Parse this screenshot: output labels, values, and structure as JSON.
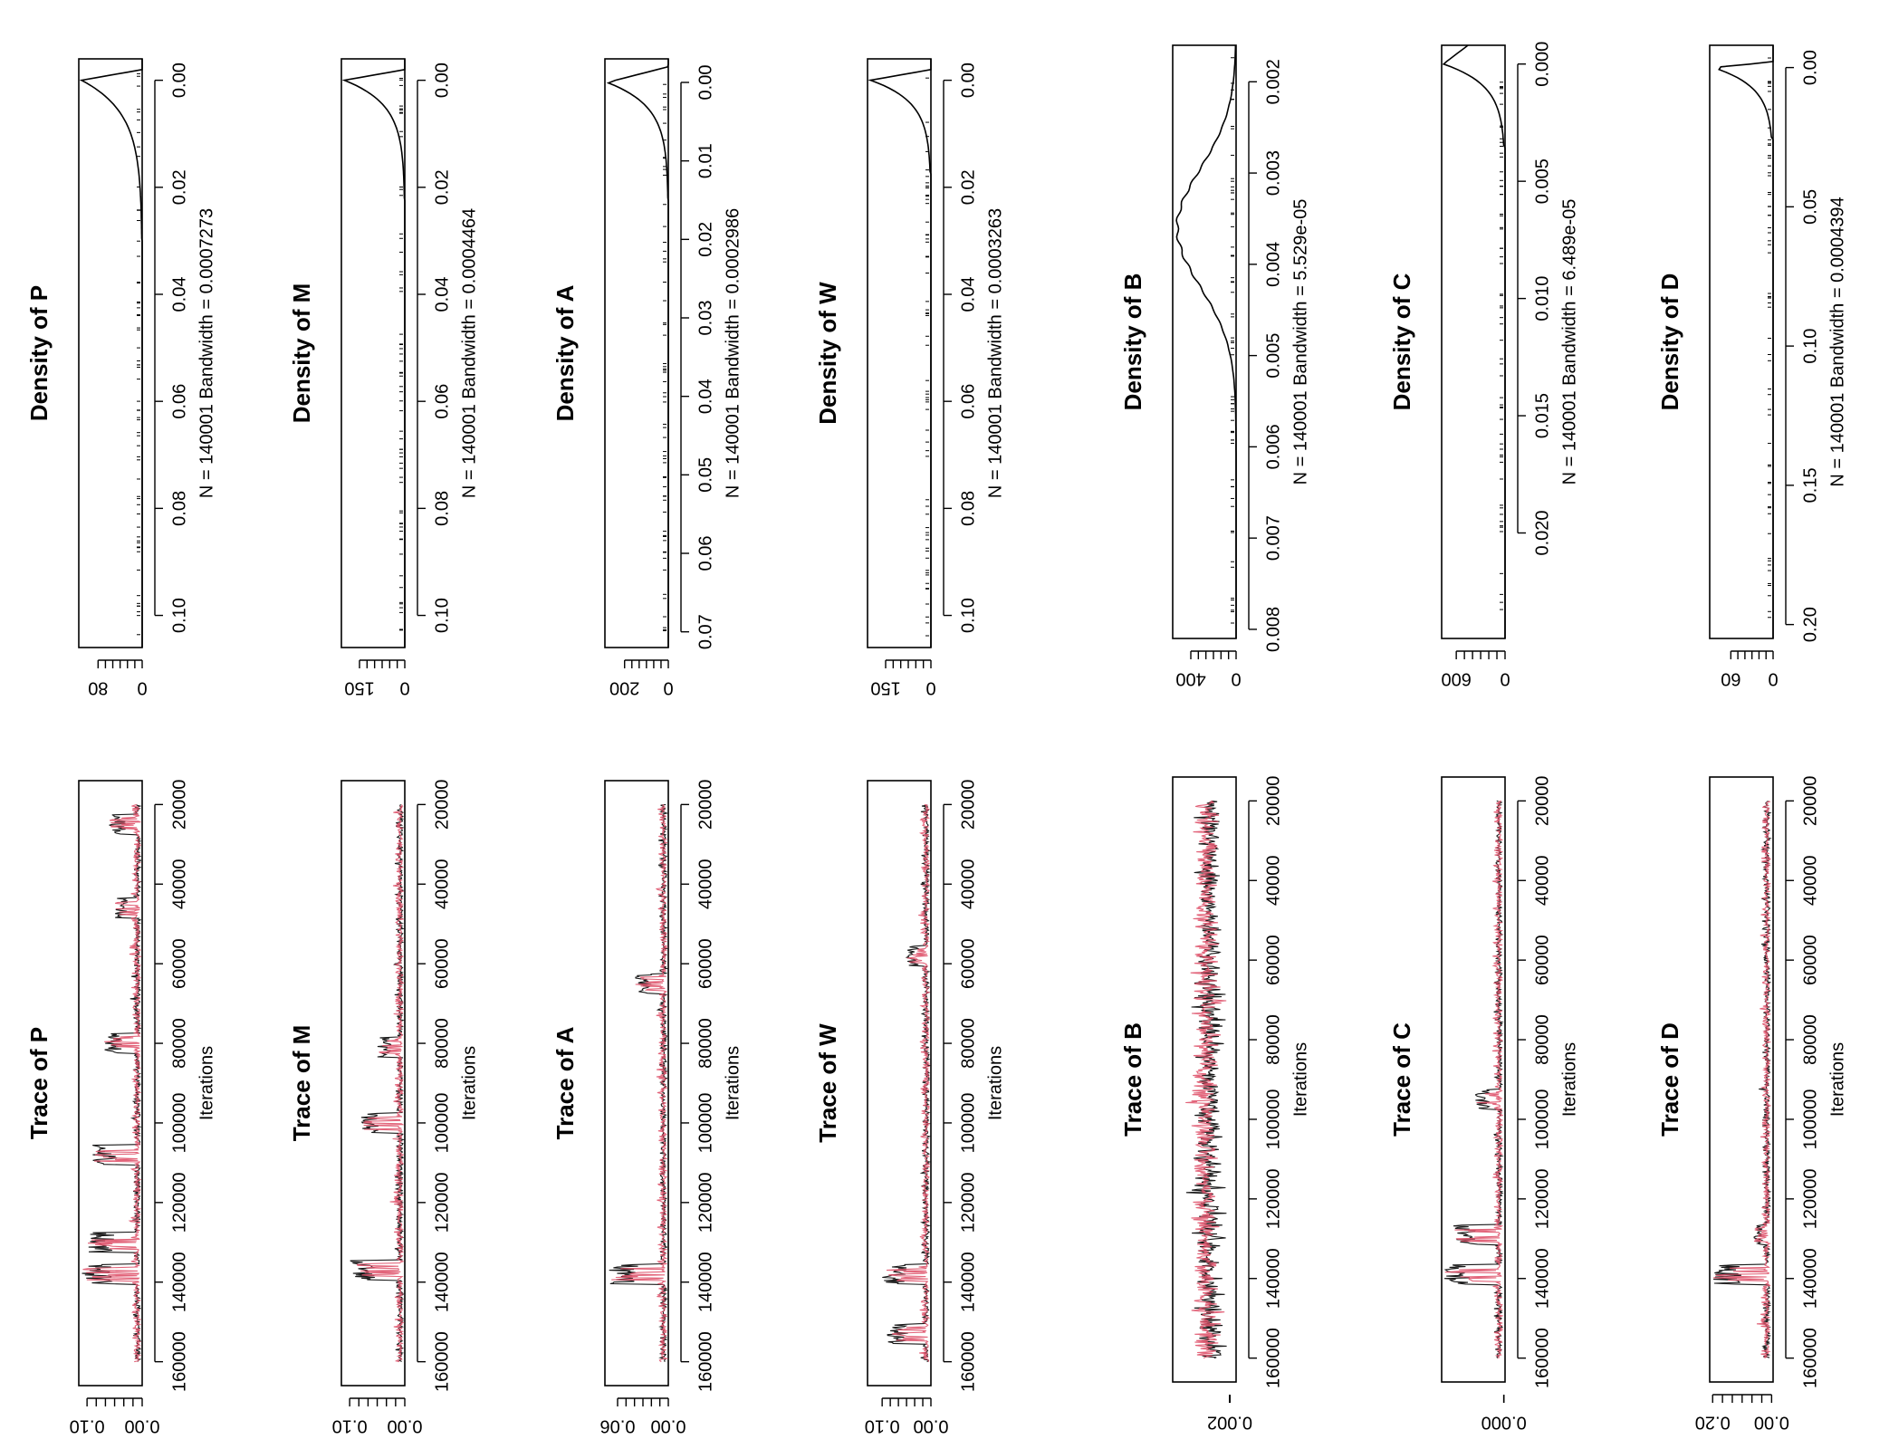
{
  "chart_data": [
    {
      "type": "line",
      "panel": "trace",
      "param": "P",
      "title": "Trace of P",
      "xlabel": "Iterations",
      "xticks": [
        20000,
        40000,
        60000,
        80000,
        100000,
        120000,
        140000,
        160000
      ],
      "xlim": [
        14000,
        166000
      ],
      "yticks": [
        "0.00",
        "0.10"
      ],
      "ytick_values": [
        0.0,
        0.1
      ],
      "ylim": [
        0,
        0.115
      ],
      "series": [],
      "colors": [
        "#000000",
        "#DF536B"
      ],
      "spikes": [
        [
          25000,
          0.06
        ],
        [
          46000,
          0.05
        ],
        [
          80000,
          0.07
        ],
        [
          108000,
          0.09
        ],
        [
          130000,
          0.1
        ],
        [
          138000,
          0.11
        ]
      ]
    },
    {
      "type": "line",
      "panel": "density",
      "param": "P",
      "title": "Density of P",
      "xlabel": "N = 140001   Bandwidth = 0.0007273",
      "xticks": [
        "0.00",
        "0.02",
        "0.04",
        "0.06",
        "0.08",
        "0.10"
      ],
      "xtick_values": [
        0,
        0.02,
        0.04,
        0.06,
        0.08,
        0.1
      ],
      "xlim": [
        -0.004,
        0.106
      ],
      "yticks": [
        "0",
        "80"
      ],
      "ytick_values": [
        0,
        80
      ],
      "ylim": [
        0,
        115
      ],
      "curve": {
        "peak": 110,
        "decay": 0.006,
        "tail": 0.03
      }
    },
    {
      "type": "line",
      "panel": "trace",
      "param": "M",
      "title": "Trace of M",
      "xlabel": "Iterations",
      "xticks": [
        20000,
        40000,
        60000,
        80000,
        100000,
        120000,
        140000,
        160000
      ],
      "xlim": [
        14000,
        166000
      ],
      "yticks": [
        "0.00",
        "0.10"
      ],
      "ytick_values": [
        0.0,
        0.1
      ],
      "ylim": [
        0,
        0.115
      ],
      "series": [],
      "colors": [
        "#000000",
        "#DF536B"
      ],
      "spikes": [
        [
          81000,
          0.05
        ],
        [
          100000,
          0.08
        ],
        [
          137000,
          0.1
        ]
      ]
    },
    {
      "type": "line",
      "panel": "density",
      "param": "M",
      "title": "Density of M",
      "xlabel": "N = 140001   Bandwidth = 0.0004464",
      "xticks": [
        "0.00",
        "0.02",
        "0.04",
        "0.06",
        "0.08",
        "0.10"
      ],
      "xtick_values": [
        0,
        0.02,
        0.04,
        0.06,
        0.08,
        0.1
      ],
      "xlim": [
        -0.004,
        0.106
      ],
      "yticks": [
        "0",
        "150"
      ],
      "ytick_values": [
        0,
        150
      ],
      "ylim": [
        0,
        210
      ],
      "curve": {
        "peak": 200,
        "decay": 0.0045,
        "tail": 0.022
      }
    },
    {
      "type": "line",
      "panel": "trace",
      "param": "A",
      "title": "Trace of A",
      "xlabel": "Iterations",
      "xticks": [
        20000,
        40000,
        60000,
        80000,
        100000,
        120000,
        140000,
        160000
      ],
      "xlim": [
        14000,
        166000
      ],
      "yticks": [
        "0.00",
        "0.06"
      ],
      "ytick_values": [
        0.0,
        0.06
      ],
      "ylim": [
        0,
        0.075
      ],
      "series": [],
      "colors": [
        "#000000",
        "#DF536B"
      ],
      "spikes": [
        [
          65000,
          0.04
        ],
        [
          138000,
          0.07
        ]
      ]
    },
    {
      "type": "line",
      "panel": "density",
      "param": "A",
      "title": "Density of A",
      "xlabel": "N = 140001   Bandwidth = 0.0002986",
      "xticks": [
        "0.00",
        "0.01",
        "0.02",
        "0.03",
        "0.04",
        "0.05",
        "0.06",
        "0.07"
      ],
      "xtick_values": [
        0,
        0.01,
        0.02,
        0.03,
        0.04,
        0.05,
        0.06,
        0.07
      ],
      "xlim": [
        -0.003,
        0.072
      ],
      "yticks": [
        "0",
        "200"
      ],
      "ytick_values": [
        0,
        200
      ],
      "ylim": [
        0,
        290
      ],
      "curve": {
        "peak": 280,
        "decay": 0.003,
        "tail": 0.015
      }
    },
    {
      "type": "line",
      "panel": "trace",
      "param": "W",
      "title": "Trace of W",
      "xlabel": "Iterations",
      "xticks": [
        20000,
        40000,
        60000,
        80000,
        100000,
        120000,
        140000,
        160000
      ],
      "xlim": [
        14000,
        166000
      ],
      "yticks": [
        "0.00",
        "0.10"
      ],
      "ytick_values": [
        0.0,
        0.1
      ],
      "ylim": [
        0,
        0.13
      ],
      "series": [],
      "colors": [
        "#000000",
        "#DF536B"
      ],
      "spikes": [
        [
          58000,
          0.05
        ],
        [
          138000,
          0.1
        ],
        [
          153000,
          0.09
        ]
      ]
    },
    {
      "type": "line",
      "panel": "density",
      "param": "W",
      "title": "Density of W",
      "xlabel": "N = 140001   Bandwidth = 0.0003263",
      "xticks": [
        "0.00",
        "0.02",
        "0.04",
        "0.06",
        "0.08",
        "0.10"
      ],
      "xtick_values": [
        0,
        0.02,
        0.04,
        0.06,
        0.08,
        0.1
      ],
      "xlim": [
        -0.004,
        0.106
      ],
      "yticks": [
        "0",
        "150"
      ],
      "ytick_values": [
        0,
        150
      ],
      "ylim": [
        0,
        210
      ],
      "curve": {
        "peak": 200,
        "decay": 0.004,
        "tail": 0.017
      }
    },
    {
      "type": "line",
      "panel": "trace",
      "param": "B",
      "title": "Trace of B",
      "xlabel": "Iterations",
      "xticks": [
        20000,
        40000,
        60000,
        80000,
        100000,
        120000,
        140000,
        160000
      ],
      "xlim": [
        14000,
        166000
      ],
      "yticks": [
        "0.002"
      ],
      "ytick_values": [
        0.002
      ],
      "ylim": [
        0.0015,
        0.0065
      ],
      "series": [],
      "colors": [
        "#000000",
        "#DF536B"
      ],
      "spikes": []
    },
    {
      "type": "line",
      "panel": "density",
      "param": "B",
      "title": "Density of B",
      "xlabel": "N = 140001   Bandwidth = 5.529e-05",
      "xticks": [
        "0.002",
        "0.003",
        "0.004",
        "0.005",
        "0.006",
        "0.007",
        "0.008"
      ],
      "xtick_values": [
        0.002,
        0.003,
        0.004,
        0.005,
        0.006,
        0.007,
        0.008
      ],
      "xlim": [
        0.0016,
        0.0081
      ],
      "yticks": [
        "0",
        "400"
      ],
      "ytick_values": [
        0,
        400
      ],
      "ylim": [
        0,
        560
      ],
      "curve": {
        "mode": 0.0036,
        "sd": 0.00065,
        "peak": 520
      }
    },
    {
      "type": "line",
      "panel": "trace",
      "param": "C",
      "title": "Trace of C",
      "xlabel": "Iterations",
      "xticks": [
        20000,
        40000,
        60000,
        80000,
        100000,
        120000,
        140000,
        160000
      ],
      "xlim": [
        14000,
        166000
      ],
      "yticks": [
        "0.000"
      ],
      "ytick_values": [
        0.0
      ],
      "ylim": [
        -0.0005,
        0.026
      ],
      "series": [],
      "colors": [
        "#000000",
        "#DF536B"
      ],
      "spikes": [
        [
          95000,
          0.012
        ],
        [
          129000,
          0.022
        ],
        [
          139000,
          0.025
        ]
      ]
    },
    {
      "type": "line",
      "panel": "density",
      "param": "C",
      "title": "Density of C",
      "xlabel": "N = 140001   Bandwidth = 6.489e-05",
      "xticks": [
        "0.000",
        "0.005",
        "0.010",
        "0.015",
        "0.020"
      ],
      "xtick_values": [
        0,
        0.005,
        0.01,
        0.015,
        0.02
      ],
      "xlim": [
        -0.0008,
        0.0245
      ],
      "yticks": [
        "0",
        "600"
      ],
      "ytick_values": [
        0,
        600
      ],
      "ylim": [
        0,
        780
      ],
      "curve": {
        "peak": 760,
        "decay": 0.0009,
        "tail": 0.0035
      }
    },
    {
      "type": "line",
      "panel": "trace",
      "param": "D",
      "title": "Trace of D",
      "xlabel": "Iterations",
      "xticks": [
        20000,
        40000,
        60000,
        80000,
        100000,
        120000,
        140000,
        160000
      ],
      "xlim": [
        14000,
        166000
      ],
      "yticks": [
        "0.00",
        "0.20"
      ],
      "ytick_values": [
        0.0,
        0.2
      ],
      "ylim": [
        -0.005,
        0.21
      ],
      "series": [],
      "colors": [
        "#000000",
        "#DF536B"
      ],
      "spikes": [
        [
          129000,
          0.06
        ],
        [
          139000,
          0.2
        ]
      ]
    },
    {
      "type": "line",
      "panel": "density",
      "param": "D",
      "title": "Density of D",
      "xlabel": "N = 140001   Bandwidth = 0.0004394",
      "xticks": [
        "0.00",
        "0.05",
        "0.10",
        "0.15",
        "0.20"
      ],
      "xtick_values": [
        0,
        0.05,
        0.1,
        0.15,
        0.2
      ],
      "xlim": [
        -0.008,
        0.205
      ],
      "yticks": [
        "0",
        "60"
      ],
      "ytick_values": [
        0,
        60
      ],
      "ylim": [
        0,
        90
      ],
      "curve": {
        "peak": 85,
        "decay": 0.007,
        "tail": 0.025
      }
    }
  ]
}
